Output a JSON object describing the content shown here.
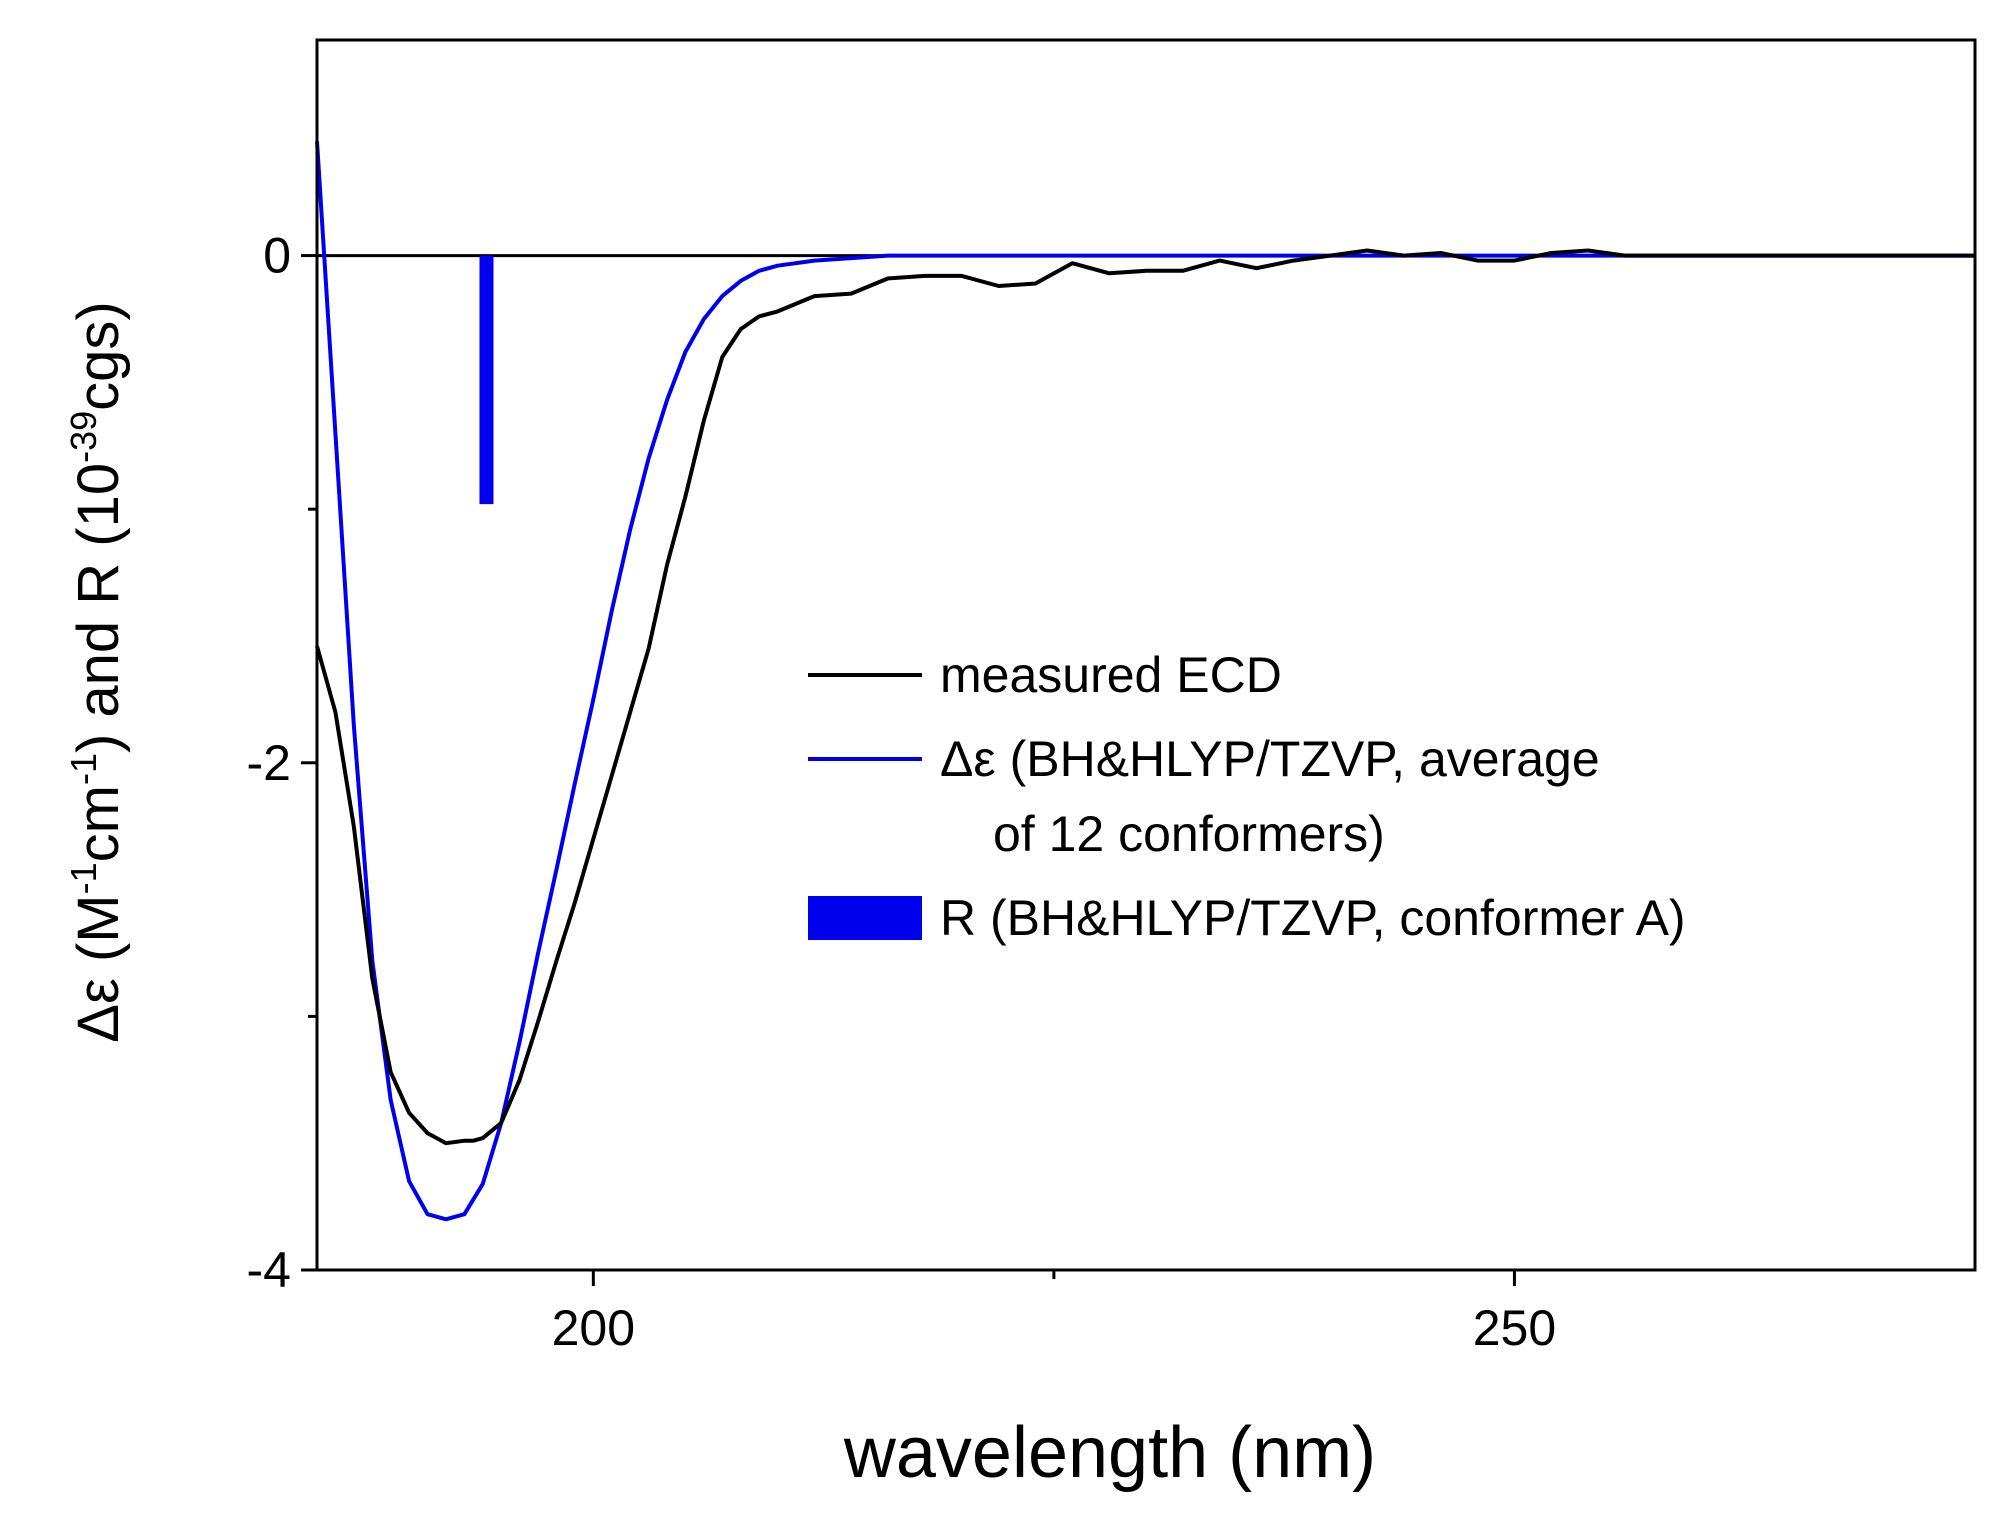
{
  "chart_data": {
    "type": "line",
    "xlabel": "wavelength (nm)",
    "ylabel": {
      "prefix": "Δε (M",
      "exp1": "-1",
      "mid1": "cm",
      "exp2": "-1",
      "mid2": ") and R (10",
      "exp3": "-39",
      "suffix": "cgs)"
    },
    "xlim": [
      185,
      275
    ],
    "ylim": [
      -4,
      0.85
    ],
    "x_ticks_major": [
      200,
      250
    ],
    "x_tick_labels": [
      "200",
      "250"
    ],
    "x_ticks_minor": [
      225
    ],
    "y_ticks_major": [
      0,
      -2,
      -4
    ],
    "y_tick_labels": [
      "0",
      "-2",
      "-4"
    ],
    "y_ticks_minor": [
      -1,
      -3
    ],
    "zero_line": true,
    "grid": false,
    "legend_position": "center-right",
    "series": [
      {
        "name": "measured ECD",
        "color": "#000000",
        "x": [
          185,
          186,
          187,
          188,
          189,
          190,
          191,
          192,
          193,
          193.5,
          194,
          195,
          196,
          197,
          198,
          199,
          200,
          201,
          202,
          203,
          204,
          205,
          206,
          207,
          208,
          209,
          210,
          212,
          214,
          216,
          218,
          220,
          222,
          224,
          226,
          228,
          230,
          232,
          234,
          236,
          238,
          240,
          242,
          244,
          246,
          248,
          250,
          252,
          254,
          256,
          258,
          260,
          262,
          264,
          266,
          268,
          270,
          272,
          275
        ],
        "y": [
          -1.54,
          -1.8,
          -2.25,
          -2.85,
          -3.22,
          -3.38,
          -3.46,
          -3.5,
          -3.49,
          -3.49,
          -3.48,
          -3.42,
          -3.25,
          -3.02,
          -2.78,
          -2.55,
          -2.3,
          -2.05,
          -1.8,
          -1.55,
          -1.22,
          -0.95,
          -0.65,
          -0.4,
          -0.29,
          -0.24,
          -0.22,
          -0.16,
          -0.15,
          -0.09,
          -0.08,
          -0.08,
          -0.12,
          -0.11,
          -0.03,
          -0.07,
          -0.06,
          -0.06,
          -0.02,
          -0.05,
          -0.02,
          0.0,
          0.02,
          0.0,
          0.01,
          -0.02,
          -0.02,
          0.01,
          0.02,
          0.0,
          0.0,
          0.0,
          0.0,
          0.0,
          0.0,
          0.0,
          0.0,
          0.0,
          0.0
        ]
      },
      {
        "name": "Δε (BH&HLYP/TZVP, average of 12 conformers)",
        "legend_lines": [
          "Δε (BH&HLYP/TZVP, average",
          "of 12 conformers)"
        ],
        "color": "#0000ee",
        "x": [
          185,
          186,
          187,
          188,
          189,
          190,
          191,
          192,
          193,
          194,
          195,
          196,
          197,
          198,
          199,
          200,
          201,
          202,
          203,
          204,
          205,
          206,
          207,
          208,
          209,
          210,
          212,
          214,
          216,
          218,
          220,
          225,
          230,
          240,
          250,
          260,
          270,
          275
        ],
        "y": [
          0.45,
          -0.7,
          -1.85,
          -2.78,
          -3.33,
          -3.65,
          -3.78,
          -3.8,
          -3.78,
          -3.66,
          -3.42,
          -3.1,
          -2.75,
          -2.42,
          -2.08,
          -1.75,
          -1.4,
          -1.08,
          -0.8,
          -0.57,
          -0.38,
          -0.25,
          -0.16,
          -0.1,
          -0.06,
          -0.04,
          -0.02,
          -0.01,
          0.0,
          0.0,
          0.0,
          0.0,
          0.0,
          0.0,
          0.0,
          0.0,
          0.0,
          0.0
        ]
      }
    ],
    "bars": {
      "name": "R (BH&HLYP/TZVP, conformer A)",
      "color": "#0000ee",
      "x": [
        194.2
      ],
      "values": [
        -0.98
      ]
    }
  }
}
